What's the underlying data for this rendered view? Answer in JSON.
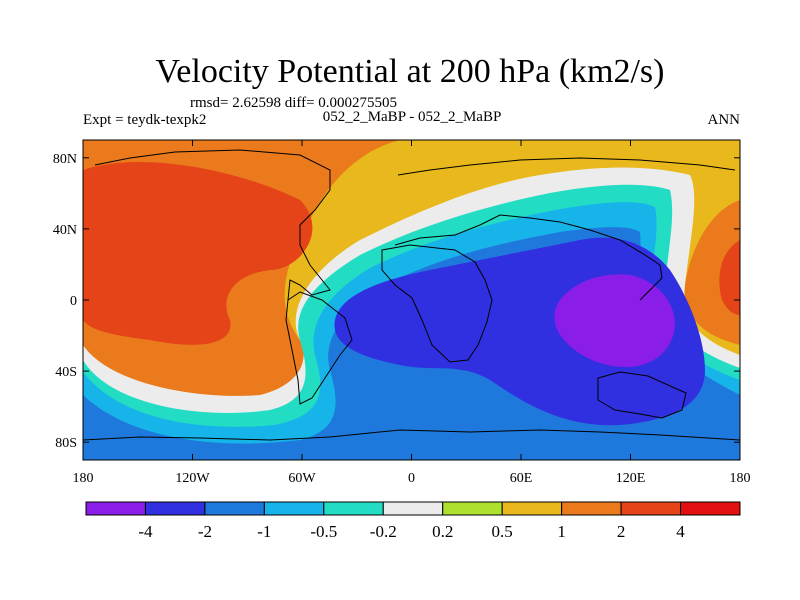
{
  "chart_data": {
    "type": "heatmap",
    "title": "Velocity Potential at 200 hPa (km2/s)",
    "stats_text": "rmsd= 2.62598 diff= 0.000275505",
    "left_label": "Expt = teydk-texpk2",
    "center_label": "052_2_MaBP - 052_2_MaBP",
    "right_label": "ANN",
    "xlabel": "",
    "ylabel": "",
    "x_range": [
      -180,
      180
    ],
    "y_range": [
      -90,
      90
    ],
    "x_ticks": [
      {
        "value": -180,
        "label": "180"
      },
      {
        "value": -120,
        "label": "120W"
      },
      {
        "value": -60,
        "label": "60W"
      },
      {
        "value": 0,
        "label": "0"
      },
      {
        "value": 60,
        "label": "60E"
      },
      {
        "value": 120,
        "label": "120E"
      },
      {
        "value": 180,
        "label": "180"
      }
    ],
    "y_ticks": [
      {
        "value": 80,
        "label": "80N"
      },
      {
        "value": 40,
        "label": "40N"
      },
      {
        "value": 0,
        "label": "0"
      },
      {
        "value": -40,
        "label": "40S"
      },
      {
        "value": -80,
        "label": "80S"
      }
    ],
    "colorbar": {
      "levels": [
        "-4",
        "-2",
        "-1",
        "-0.5",
        "-0.2",
        "0.2",
        "0.5",
        "1",
        "2",
        "4"
      ],
      "colors": [
        "#8a1ee8",
        "#3030e0",
        "#1f78dc",
        "#17b4ea",
        "#22ddc4",
        "#ececec",
        "#aee030",
        "#e8b81c",
        "#ea7a1c",
        "#e44418",
        "#e21010"
      ]
    },
    "field_regions": [
      {
        "name": "west-positive-lobe",
        "value": 3.0,
        "center_lon": -140,
        "center_lat": 20
      },
      {
        "name": "east-positive-lobe",
        "value": 2.5,
        "center_lon": 170,
        "center_lat": 10
      },
      {
        "name": "central-negative-lobe",
        "value": -3.0,
        "center_lon": 20,
        "center_lat": -15
      },
      {
        "name": "eastern-negative-core",
        "value": -4.5,
        "center_lon": 118,
        "center_lat": -10
      }
    ]
  }
}
